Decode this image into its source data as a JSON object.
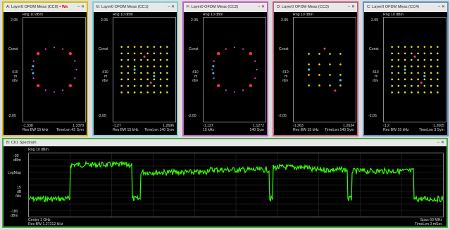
{
  "panes": [
    {
      "title": "A: Layer0 OFDM Meas (CC0)",
      "active_marker": "• Wa",
      "border": "#d4c000",
      "ref": "Rng 10 dBm",
      "ymax": "2.05",
      "ylab": "Const",
      "scale": "410",
      "unit": "m",
      "div": "/div",
      "ymin": "-2.05",
      "xmin": "-1.338",
      "xmax": "1.3378",
      "footer_left": "Res BW 15 kHz",
      "footer_right": "TimeLen 42  Sym",
      "controls": "− ✕",
      "type": "qpsk"
    },
    {
      "title": "E: Layer0 OFDM Meas (CC1)",
      "active_marker": "",
      "border": "#7fd0d0",
      "ref": "Rng 10 dBm",
      "ymax": "2.05",
      "ylab": "Const",
      "scale": "410",
      "unit": "m",
      "div": "/div",
      "ymin": "-2.05",
      "xmin": "-1.27",
      "xmax": "1.2696",
      "footer_left": "Res BW 15 kHz",
      "footer_right": "TimeLen 140  Sym",
      "controls": "− ✕",
      "type": "qam64"
    },
    {
      "title": "F: Layer0 OFDM Meas (CC2)",
      "active_marker": "",
      "border": "#c060c0",
      "ref": "Rng 10 dBm",
      "ymax": "2.05",
      "ylab": "Const",
      "scale": "410",
      "unit": "m",
      "div": "/div",
      "ymin": "-2.05",
      "xmin": "-1.127",
      "xmax": "1.1272",
      "footer_left": "15 kHz",
      "footer_right": "140  Sym",
      "controls": "− ✕",
      "type": "qpsk"
    },
    {
      "title": "D: Layer0 OFDM Meas (CC3)",
      "active_marker": "",
      "border": "#c06080",
      "ref": "Rng 10 dBm",
      "ymax": "2.05",
      "ylab": "Const",
      "scale": "410",
      "unit": "m",
      "div": "/div",
      "ymin": "-2.05",
      "xmin": "-1.263",
      "xmax": "1.2634",
      "footer_left": "Res BW 15 kHz",
      "footer_right": "TimeLen 140  Sym",
      "controls": "− ✕",
      "type": "qam16"
    },
    {
      "title": "C: Layer0 OFDM Meas (CC4)",
      "active_marker": "",
      "border": "#6090c0",
      "ref": "Rng 10 dBm",
      "ymax": "2.05",
      "ylab": "Const",
      "scale": "410",
      "unit": "m",
      "div": "/div",
      "ymin": "-2.05",
      "xmin": "-1.2",
      "xmax": "1.2005",
      "footer_left": "Res BW 15 kHz",
      "footer_right": "TimeLen 3  Sym",
      "controls": "− ✕",
      "type": "qam64"
    }
  ],
  "spectrum": {
    "title": "B: Ch1 Spectrum",
    "controls": "− ✕",
    "ref": "Rng 10 dBm",
    "ytop": "-30",
    "ytop_unit": "dBm",
    "ylab": "LogMag",
    "scale": "15",
    "scale_unit": "dB",
    "div": "/div",
    "ybot": "-180",
    "ybot_unit": "dBm",
    "center": "Center 1 GHz",
    "resbw": "Res BW 1.27312 kHz",
    "span": "Span 60 MHz",
    "timelen": "TimeLen 3 mSec",
    "trace_color": "#33ff00"
  }
}
